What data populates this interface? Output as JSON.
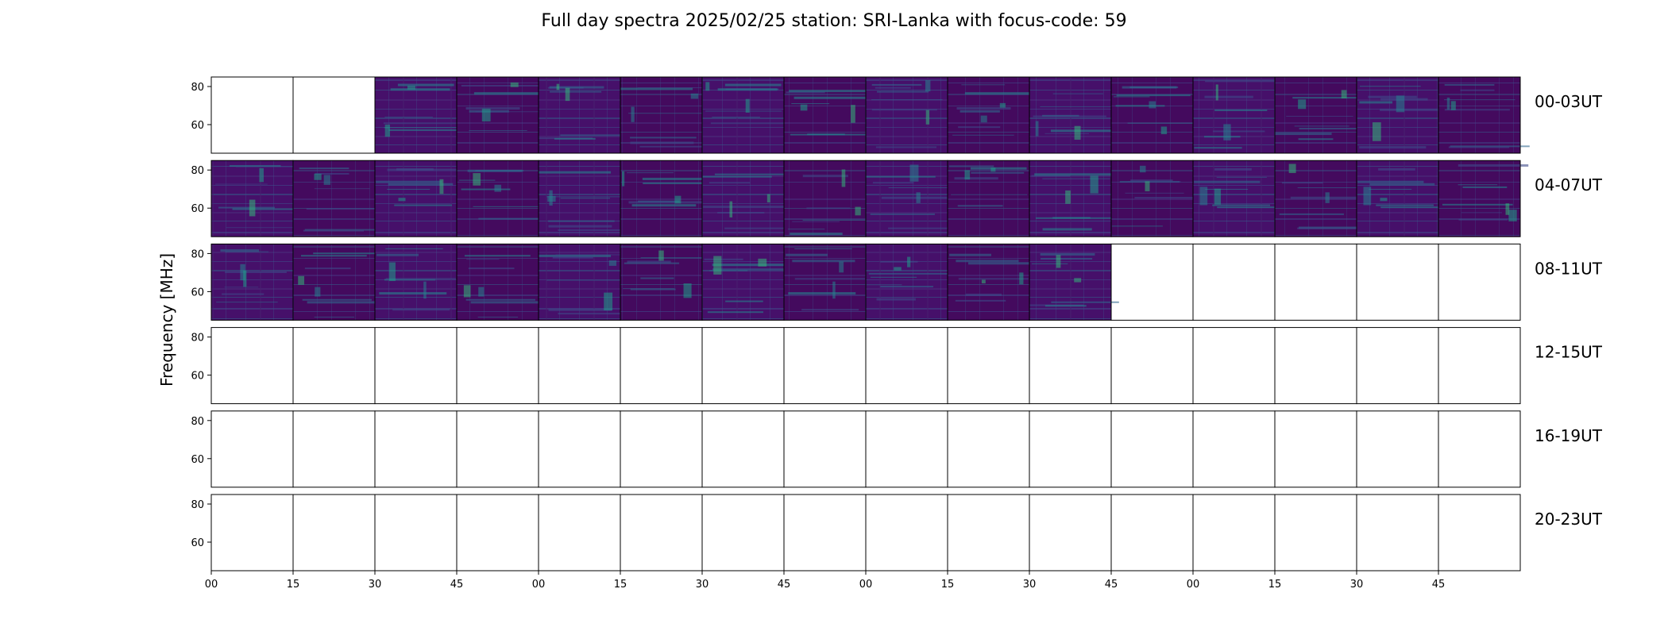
{
  "chart_data": {
    "type": "heatmap",
    "title": "Full day spectra 2025/02/25 station: SRI-Lanka with focus-code: 59",
    "xlabel": "",
    "ylabel": "Frequency [MHz]",
    "ylim": [
      45,
      85
    ],
    "y_ticks": [
      60,
      80
    ],
    "x_tick_labels": [
      "00",
      "15",
      "30",
      "45",
      "00",
      "15",
      "30",
      "45",
      "00",
      "15",
      "30",
      "45",
      "00",
      "15",
      "30",
      "45"
    ],
    "colormap": "viridis",
    "colors": {
      "low": "#440154",
      "mid": "#31688e",
      "high": "#35b779",
      "peak": "#b5de2b",
      "empty": "#ffffff",
      "frame": "#000000"
    },
    "panels_per_row": 16,
    "row_labels": [
      "00-03UT",
      "04-07UT",
      "08-11UT",
      "12-15UT",
      "16-19UT",
      "20-23UT"
    ],
    "data_available": [
      [
        false,
        false,
        true,
        true,
        true,
        true,
        true,
        true,
        true,
        true,
        true,
        true,
        true,
        true,
        true,
        true
      ],
      [
        true,
        true,
        true,
        true,
        true,
        true,
        true,
        true,
        true,
        true,
        true,
        true,
        true,
        true,
        true,
        true
      ],
      [
        true,
        true,
        true,
        true,
        true,
        true,
        true,
        true,
        true,
        true,
        true,
        false,
        false,
        false,
        false,
        false
      ],
      [
        false,
        false,
        false,
        false,
        false,
        false,
        false,
        false,
        false,
        false,
        false,
        false,
        false,
        false,
        false,
        false
      ],
      [
        false,
        false,
        false,
        false,
        false,
        false,
        false,
        false,
        false,
        false,
        false,
        false,
        false,
        false,
        false,
        false
      ],
      [
        false,
        false,
        false,
        false,
        false,
        false,
        false,
        false,
        false,
        false,
        false,
        false,
        false,
        false,
        false,
        false
      ]
    ],
    "grid": false,
    "legend": "none"
  }
}
